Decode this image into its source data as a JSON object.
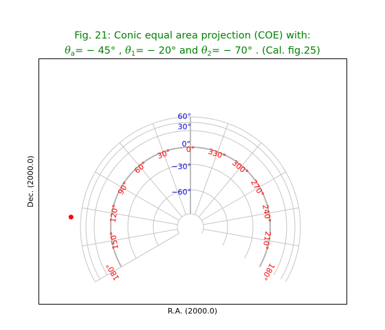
{
  "figure": {
    "title_line1": "Fig. 21: Conic equal area projection (COE) with:",
    "title_line2": {
      "theta_a_value": "= − 45° , ",
      "theta_1_value": "= − 20°  and ",
      "theta_2_value": "= − 70° . (Cal. fig.25)",
      "theta_symbol": "θ",
      "sub_a": "a",
      "sub_1": "1",
      "sub_2": "2"
    },
    "xlabel": "R.A. (2000.0)",
    "ylabel": "Dec. (2000.0)"
  },
  "chart_data": {
    "type": "graticule",
    "projection": "COE",
    "theta_a": -45,
    "theta_1": -20,
    "theta_2": -70,
    "ra_meridians": [
      0,
      30,
      60,
      90,
      120,
      150,
      180,
      210,
      240,
      270,
      300,
      330
    ],
    "ra_tick_labels": [
      "0°",
      "30°",
      "60°",
      "90°",
      "120°",
      "150°",
      "180°",
      "210°",
      "240°",
      "270°",
      "300°",
      "330°",
      "180°"
    ],
    "dec_parallels": [
      -60,
      -30,
      0,
      30,
      60
    ],
    "dec_tick_labels": [
      "60°",
      "30°",
      "0°",
      "−30°",
      "−60°"
    ],
    "marker": {
      "ra": 120,
      "dec": 60,
      "color": "#ff0000"
    },
    "colors": {
      "title": "#008000",
      "ra_labels": "#ff0000",
      "dec_labels": "#0000cc",
      "grid": "#c4c4c4"
    }
  }
}
